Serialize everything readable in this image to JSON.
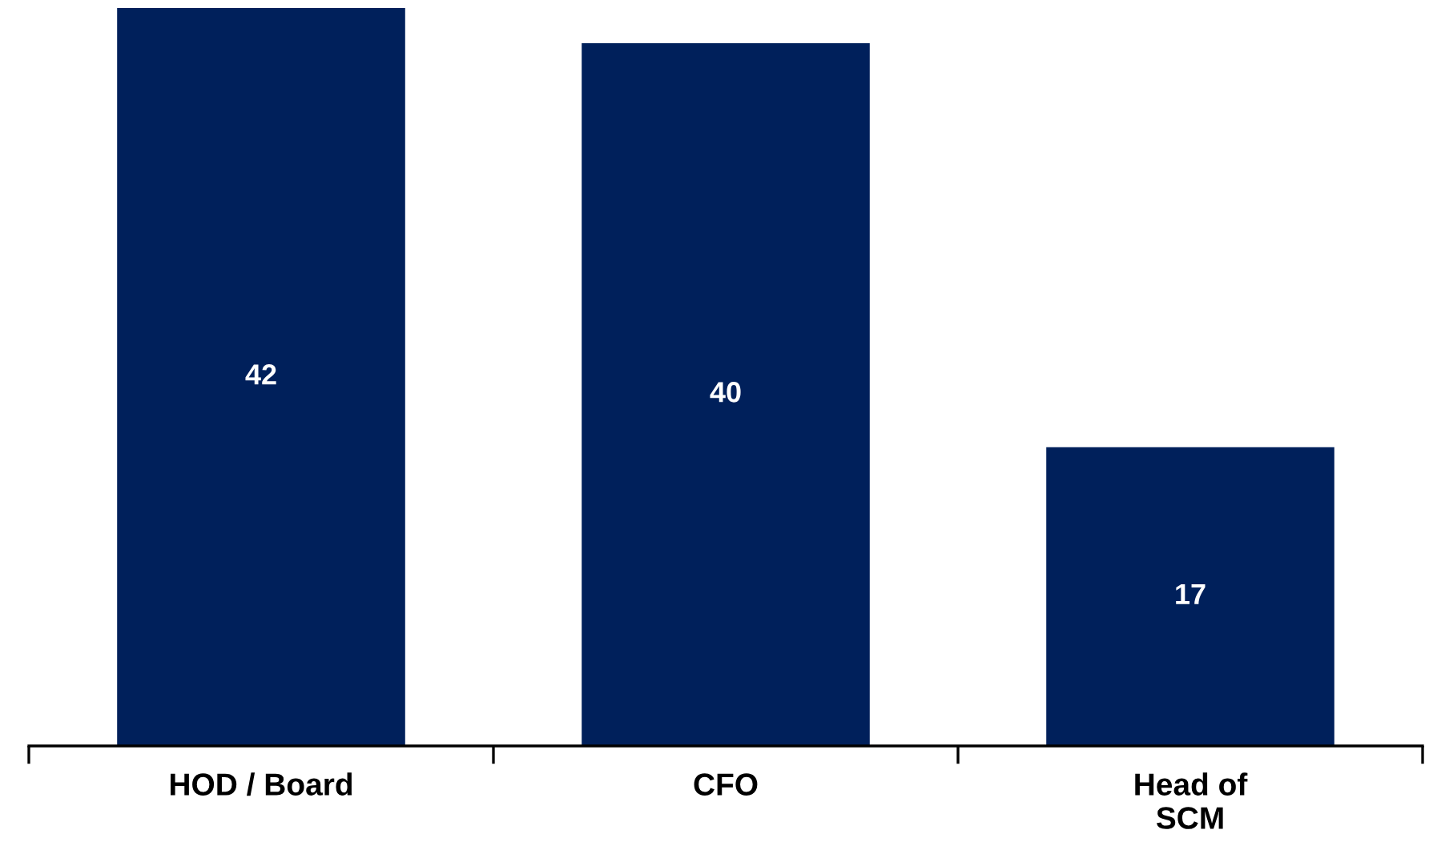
{
  "chart_data": {
    "type": "bar",
    "categories": [
      "HOD / Board",
      "CFO",
      "Head of\nSCM"
    ],
    "values": [
      42,
      40,
      17
    ],
    "color": "#00205b",
    "data_labels": true,
    "tick_labels": "x"
  }
}
